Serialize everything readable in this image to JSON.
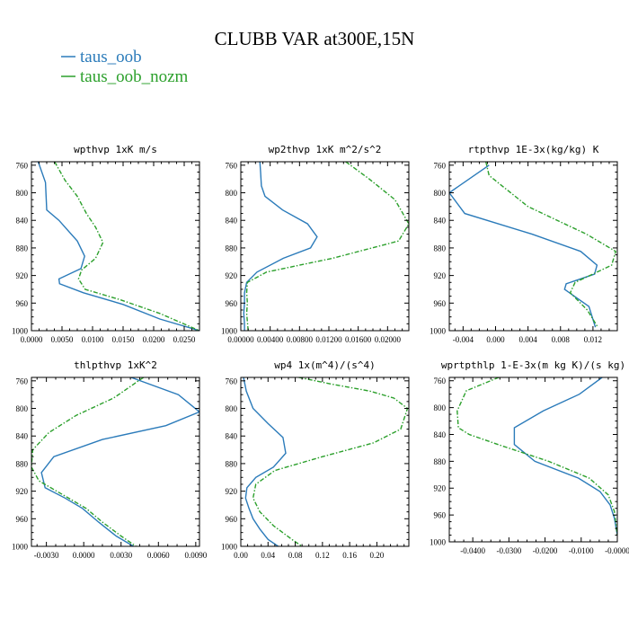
{
  "figure": {
    "title": "CLUBB VAR at300E,15N",
    "legend": [
      {
        "name": "taus_oob",
        "color": "#2b7bba"
      },
      {
        "name": "taus_oob_nozm",
        "color": "#2ca02c"
      }
    ]
  },
  "chart_data": [
    {
      "type": "line",
      "title": "wpthvp  1xK m/s",
      "xlim": [
        0.0,
        0.0275
      ],
      "ylim": [
        1000,
        755
      ],
      "xticks": [
        0.0,
        0.005,
        0.01,
        0.015,
        0.02,
        0.025
      ],
      "xtick_labels": [
        "0.0000",
        "0.0050",
        "0.0100",
        "0.0150",
        "0.0200",
        "0.0250"
      ],
      "yticks": [
        760,
        800,
        840,
        880,
        920,
        960,
        1000
      ],
      "ytick_labels": [
        "760",
        "800",
        "840",
        "880",
        "920",
        "960",
        "1000"
      ],
      "series": [
        {
          "name": "taus_oob",
          "x": [
            0.0011,
            0.0023,
            0.0024,
            0.0025,
            0.0045,
            0.0075,
            0.0087,
            0.0081,
            0.0045,
            0.0046,
            0.0085,
            0.015,
            0.021,
            0.0275
          ],
          "y": [
            755,
            785,
            805,
            825,
            840,
            870,
            892,
            910,
            925,
            932,
            945,
            962,
            983,
            1000
          ]
        },
        {
          "name": "taus_oob_nozm",
          "x": [
            0.0038,
            0.0055,
            0.0075,
            0.009,
            0.0105,
            0.0117,
            0.0105,
            0.0082,
            0.0077,
            0.0088,
            0.0145,
            0.021,
            0.0275
          ],
          "y": [
            755,
            782,
            805,
            830,
            850,
            872,
            895,
            912,
            925,
            940,
            955,
            975,
            1000
          ]
        }
      ]
    },
    {
      "type": "line",
      "title": "wp2thvp  1xK m^2/s^2",
      "xlim": [
        0.0,
        0.0229
      ],
      "ylim": [
        1000,
        755
      ],
      "xticks": [
        0.0,
        0.004,
        0.008,
        0.012,
        0.016,
        0.02
      ],
      "xtick_labels": [
        "0.00000",
        "0.00400",
        "0.00800",
        "0.01200",
        "0.01600",
        "0.02000"
      ],
      "yticks": [
        760,
        800,
        840,
        880,
        920,
        960,
        1000
      ],
      "ytick_labels": [
        "760",
        "800",
        "840",
        "880",
        "920",
        "960",
        "1000"
      ],
      "series": [
        {
          "name": "taus_oob",
          "x": [
            0.0026,
            0.0027,
            0.0028,
            0.0033,
            0.0057,
            0.0091,
            0.0104,
            0.0095,
            0.0058,
            0.0022,
            0.0008,
            0.0005,
            0.0005,
            0.0004,
            0.0005,
            0.0005
          ],
          "y": [
            755,
            770,
            790,
            805,
            825,
            845,
            864,
            880,
            895,
            915,
            930,
            945,
            960,
            975,
            990,
            1000
          ]
        },
        {
          "name": "taus_oob_nozm",
          "x": [
            0.0143,
            0.0175,
            0.021,
            0.0229,
            0.0215,
            0.0125,
            0.0035,
            0.0009,
            0.0008,
            0.0009,
            0.0008,
            0.001
          ],
          "y": [
            755,
            780,
            810,
            845,
            870,
            895,
            915,
            930,
            945,
            960,
            975,
            1000
          ]
        }
      ]
    },
    {
      "type": "line",
      "title": "rtpthvp  1E-3x(kg/kg) K",
      "xlim": [
        -0.0057,
        0.015
      ],
      "ylim": [
        1000,
        755
      ],
      "xticks": [
        -0.004,
        0.0,
        0.004,
        0.008,
        0.012
      ],
      "xtick_labels": [
        "-0.004",
        "0.000",
        "0.004",
        "0.008",
        "0.012"
      ],
      "yticks": [
        760,
        800,
        840,
        880,
        920,
        960,
        1000
      ],
      "ytick_labels": [
        "760",
        "800",
        "840",
        "880",
        "920",
        "960",
        "1000"
      ],
      "series": [
        {
          "name": "taus_oob",
          "x": [
            -0.0008,
            -0.0057,
            -0.0038,
            0.0045,
            0.0105,
            0.0125,
            0.0122,
            0.0087,
            0.0085,
            0.0115,
            0.0123
          ],
          "y": [
            760,
            800,
            830,
            860,
            885,
            905,
            918,
            932,
            940,
            965,
            995
          ]
        },
        {
          "name": "taus_oob_nozm",
          "x": [
            -0.0012,
            -0.0008,
            0.004,
            0.0112,
            0.0148,
            0.0143,
            0.0098,
            0.0092,
            0.0113,
            0.0126
          ],
          "y": [
            755,
            775,
            820,
            860,
            885,
            905,
            930,
            945,
            970,
            995
          ]
        }
      ]
    },
    {
      "type": "line",
      "title": "thlpthvp  1xK^2",
      "xlim": [
        -0.0042,
        0.0093
      ],
      "ylim": [
        1000,
        755
      ],
      "xticks": [
        -0.003,
        0.0,
        0.003,
        0.006,
        0.009
      ],
      "xtick_labels": [
        "-0.0030",
        "0.0000",
        "0.0030",
        "0.0060",
        "0.0090"
      ],
      "yticks": [
        760,
        800,
        840,
        880,
        920,
        960,
        1000
      ],
      "ytick_labels": [
        "760",
        "800",
        "840",
        "880",
        "920",
        "960",
        "1000"
      ],
      "series": [
        {
          "name": "taus_oob",
          "x": [
            0.0038,
            0.0076,
            0.0093,
            0.0066,
            0.0015,
            -0.0024,
            -0.0034,
            -0.0031,
            -0.0015,
            -0.0001,
            0.0012,
            0.0026,
            0.004
          ],
          "y": [
            755,
            780,
            805,
            825,
            845,
            870,
            893,
            915,
            930,
            945,
            965,
            985,
            1000
          ]
        },
        {
          "name": "taus_oob_nozm",
          "x": [
            0.0048,
            0.0024,
            -0.0006,
            -0.0028,
            -0.0041,
            -0.0042,
            -0.0036,
            -0.0017,
            0.0002,
            0.0015,
            0.003,
            0.0042
          ],
          "y": [
            755,
            785,
            810,
            835,
            860,
            885,
            905,
            925,
            945,
            965,
            985,
            1000
          ]
        }
      ]
    },
    {
      "type": "line",
      "title": "wp4  1x(m^4)/(s^4)",
      "xlim": [
        0.0,
        0.247
      ],
      "ylim": [
        1000,
        755
      ],
      "xticks": [
        0.0,
        0.04,
        0.08,
        0.12,
        0.16,
        0.2
      ],
      "xtick_labels": [
        "0.00",
        "0.04",
        "0.08",
        "0.12",
        "0.16",
        "0.20"
      ],
      "yticks": [
        760,
        800,
        840,
        880,
        920,
        960,
        1000
      ],
      "ytick_labels": [
        "760",
        "800",
        "840",
        "880",
        "920",
        "960",
        "1000"
      ],
      "series": [
        {
          "name": "taus_oob",
          "x": [
            0.004,
            0.008,
            0.018,
            0.04,
            0.062,
            0.066,
            0.048,
            0.022,
            0.009,
            0.007,
            0.012,
            0.018,
            0.028,
            0.04,
            0.055
          ],
          "y": [
            755,
            775,
            800,
            822,
            842,
            865,
            885,
            900,
            915,
            930,
            945,
            960,
            975,
            990,
            1000
          ]
        },
        {
          "name": "taus_oob_nozm",
          "x": [
            0.085,
            0.135,
            0.19,
            0.225,
            0.245,
            0.235,
            0.195,
            0.12,
            0.05,
            0.022,
            0.018,
            0.028,
            0.048,
            0.075,
            0.09
          ],
          "y": [
            755,
            765,
            775,
            785,
            800,
            830,
            850,
            870,
            890,
            910,
            930,
            950,
            970,
            990,
            1000
          ]
        }
      ]
    },
    {
      "type": "line",
      "title": "wprtpthlp  1-E-3x(m kg K)/(s kg)",
      "xlim": [
        -0.0465,
        0.0
      ],
      "ylim": [
        1000,
        755
      ],
      "xticks": [
        -0.04,
        -0.03,
        -0.02,
        -0.01,
        0.0
      ],
      "xtick_labels": [
        "-0.0400",
        "-0.0300",
        "-0.0200",
        "-0.0100",
        "-0.0000"
      ],
      "yticks": [
        760,
        800,
        840,
        880,
        920,
        960,
        1000
      ],
      "ytick_labels": [
        "760",
        "800",
        "840",
        "880",
        "920",
        "960",
        "1000"
      ],
      "series": [
        {
          "name": "taus_oob",
          "x": [
            -0.0042,
            -0.0105,
            -0.0205,
            -0.0285,
            -0.0285,
            -0.0228,
            -0.0108,
            -0.0048,
            -0.002,
            -0.0008,
            0.0
          ],
          "y": [
            755,
            780,
            805,
            830,
            855,
            880,
            905,
            925,
            945,
            965,
            990
          ]
        },
        {
          "name": "taus_oob_nozm",
          "x": [
            -0.0328,
            -0.0418,
            -0.0443,
            -0.044,
            -0.041,
            -0.033,
            -0.019,
            -0.0078,
            -0.0025,
            -0.0008,
            0.0
          ],
          "y": [
            755,
            775,
            805,
            830,
            840,
            855,
            880,
            905,
            930,
            955,
            990
          ]
        }
      ]
    }
  ]
}
